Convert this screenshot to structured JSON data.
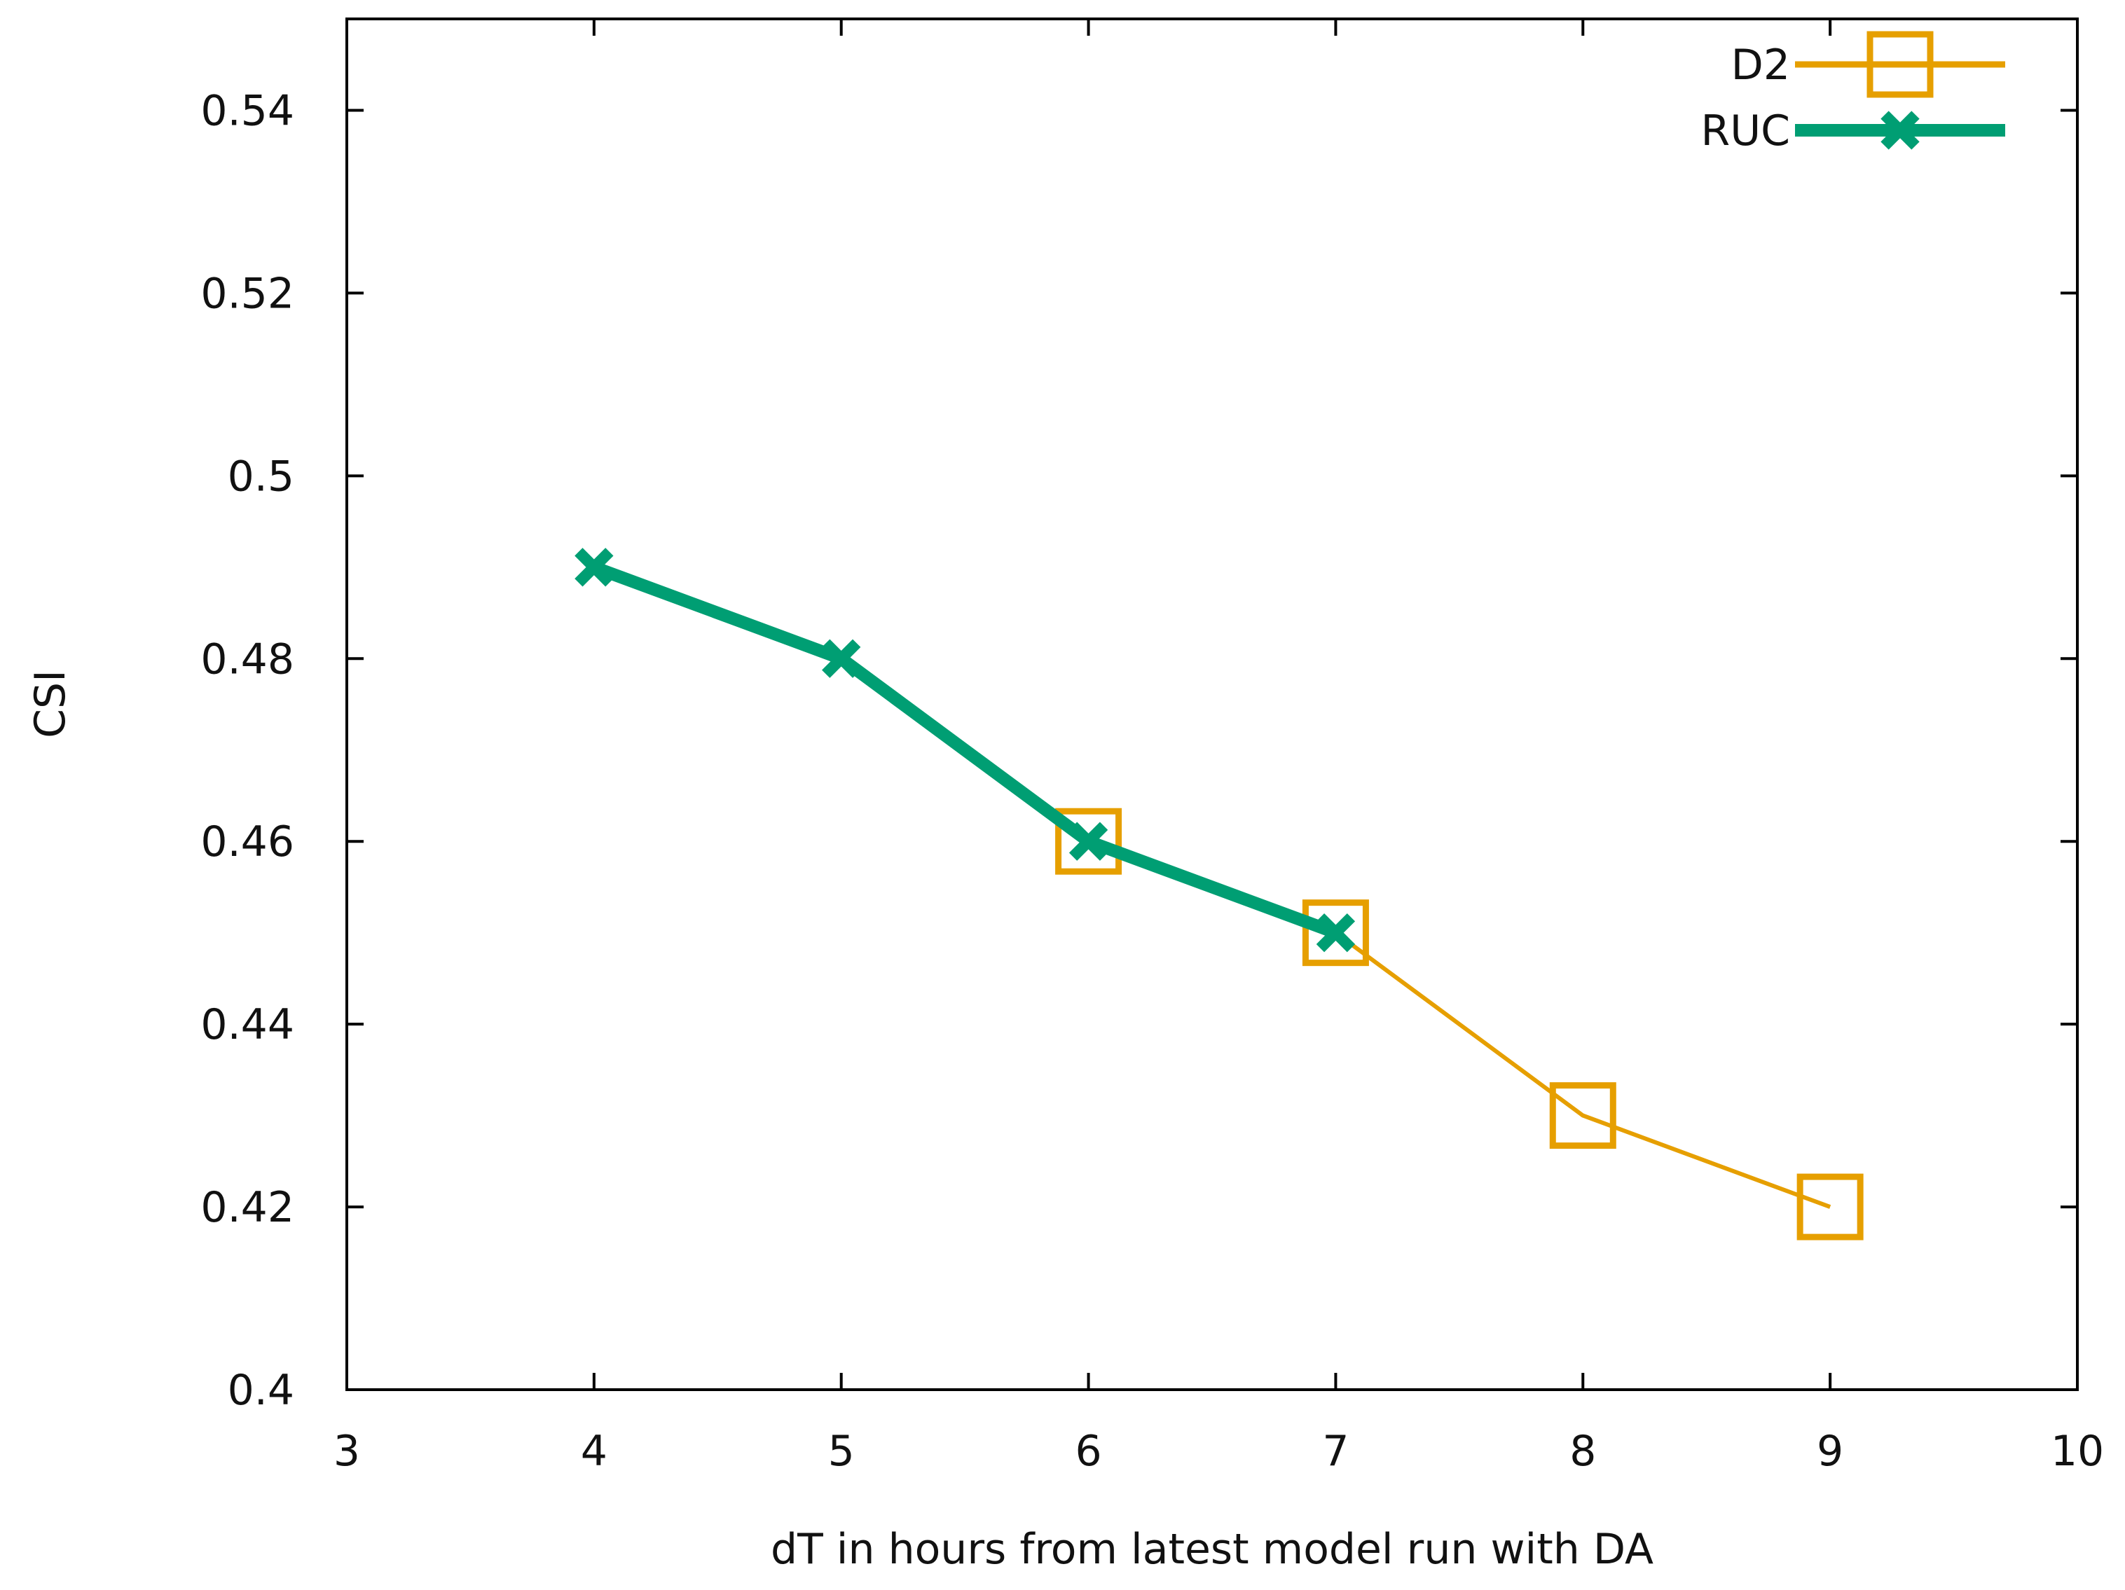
{
  "chart_data": {
    "type": "line",
    "title": "",
    "xlabel": "dT in hours from latest model run with DA",
    "ylabel": "CSI",
    "xlim": [
      3,
      10
    ],
    "ylim": [
      0.4,
      0.55
    ],
    "xticks": [
      3,
      4,
      5,
      6,
      7,
      8,
      9,
      10
    ],
    "xtick_labels": [
      "3",
      "4",
      "5",
      "6",
      "7",
      "8",
      "9",
      "10"
    ],
    "yticks": [
      0.4,
      0.42,
      0.44,
      0.46,
      0.48,
      0.5,
      0.52,
      0.54
    ],
    "ytick_labels": [
      "0.4",
      "0.42",
      "0.44",
      "0.46",
      "0.48",
      "0.5",
      "0.52",
      "0.54"
    ],
    "grid": false,
    "legend_position": "top-right",
    "series": [
      {
        "name": "D2",
        "color": "#E69F00",
        "marker": "open-square",
        "x": [
          6,
          7,
          8,
          9
        ],
        "y": [
          0.46,
          0.45,
          0.43,
          0.42
        ]
      },
      {
        "name": "RUC",
        "color": "#009E73",
        "marker": "filled-cross",
        "x": [
          4,
          5,
          6,
          7
        ],
        "y": [
          0.49,
          0.48,
          0.46,
          0.45
        ]
      }
    ]
  }
}
